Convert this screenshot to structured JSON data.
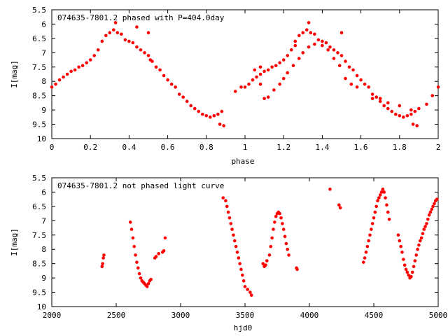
{
  "chart_data": [
    {
      "type": "scatter",
      "title": "074635-7801.2 phased with P=404.0day",
      "xlabel": "phase",
      "ylabel": "I[mag]",
      "xlim": [
        0,
        2
      ],
      "ylim": [
        10,
        5.5
      ],
      "y_inverted": true,
      "xticks": [
        0,
        0.2,
        0.4,
        0.6,
        0.8,
        1,
        1.2,
        1.4,
        1.6,
        1.8,
        2
      ],
      "xtick_labels": [
        "0",
        "0.2",
        "0.4",
        "0.6",
        "0.8",
        "1",
        "1.2",
        "1.4",
        "1.6",
        "1.8",
        "2"
      ],
      "yticks": [
        5.5,
        6,
        6.5,
        7,
        7.5,
        8,
        8.5,
        9,
        9.5,
        10
      ],
      "ytick_labels": [
        "5.5",
        "6",
        "6.5",
        "7",
        "7.5",
        "8",
        "8.5",
        "9",
        "9.5",
        "10"
      ],
      "grid": false,
      "marker_color": "#ff0000",
      "series": [
        {
          "points": [
            [
              0.0,
              8.2
            ],
            [
              0.02,
              8.1
            ],
            [
              0.04,
              7.95
            ],
            [
              0.06,
              7.85
            ],
            [
              0.08,
              7.75
            ],
            [
              0.1,
              7.65
            ],
            [
              0.12,
              7.6
            ],
            [
              0.14,
              7.5
            ],
            [
              0.16,
              7.45
            ],
            [
              0.18,
              7.35
            ],
            [
              0.2,
              7.25
            ],
            [
              0.22,
              7.1
            ],
            [
              0.24,
              6.9
            ],
            [
              0.26,
              6.6
            ],
            [
              0.28,
              6.4
            ],
            [
              0.3,
              6.3
            ],
            [
              0.32,
              6.2
            ],
            [
              0.33,
              5.95
            ],
            [
              0.34,
              6.3
            ],
            [
              0.36,
              6.35
            ],
            [
              0.38,
              6.55
            ],
            [
              0.4,
              6.6
            ],
            [
              0.42,
              6.65
            ],
            [
              0.44,
              6.8
            ],
            [
              0.46,
              6.9
            ],
            [
              0.48,
              7.0
            ],
            [
              0.5,
              7.1
            ],
            [
              0.5,
              6.3
            ],
            [
              0.52,
              7.3
            ],
            [
              0.54,
              7.5
            ],
            [
              0.56,
              7.6
            ],
            [
              0.58,
              7.8
            ],
            [
              0.6,
              7.95
            ],
            [
              0.62,
              8.1
            ],
            [
              0.64,
              8.2
            ],
            [
              0.66,
              8.45
            ],
            [
              0.68,
              8.55
            ],
            [
              0.7,
              8.7
            ],
            [
              0.72,
              8.85
            ],
            [
              0.74,
              8.95
            ],
            [
              0.76,
              9.05
            ],
            [
              0.78,
              9.15
            ],
            [
              0.8,
              9.2
            ],
            [
              0.82,
              9.25
            ],
            [
              0.84,
              9.2
            ],
            [
              0.86,
              9.15
            ],
            [
              0.87,
              9.5
            ],
            [
              0.88,
              9.05
            ],
            [
              0.89,
              9.55
            ],
            [
              1.0,
              8.2
            ],
            [
              1.02,
              8.1
            ],
            [
              1.04,
              7.95
            ],
            [
              1.06,
              7.85
            ],
            [
              1.08,
              7.75
            ],
            [
              1.1,
              7.65
            ],
            [
              1.12,
              7.6
            ],
            [
              1.14,
              7.5
            ],
            [
              1.16,
              7.45
            ],
            [
              1.18,
              7.35
            ],
            [
              1.2,
              7.25
            ],
            [
              1.22,
              7.1
            ],
            [
              1.24,
              6.9
            ],
            [
              1.26,
              6.6
            ],
            [
              1.28,
              6.4
            ],
            [
              1.3,
              6.3
            ],
            [
              1.32,
              6.2
            ],
            [
              1.33,
              5.95
            ],
            [
              1.34,
              6.3
            ],
            [
              1.36,
              6.35
            ],
            [
              1.38,
              6.55
            ],
            [
              1.4,
              6.6
            ],
            [
              1.42,
              6.65
            ],
            [
              1.44,
              6.8
            ],
            [
              1.46,
              6.9
            ],
            [
              1.48,
              7.0
            ],
            [
              1.5,
              7.1
            ],
            [
              1.5,
              6.3
            ],
            [
              1.52,
              7.3
            ],
            [
              1.54,
              7.5
            ],
            [
              1.56,
              7.6
            ],
            [
              1.58,
              7.8
            ],
            [
              1.6,
              7.95
            ],
            [
              1.62,
              8.1
            ],
            [
              1.64,
              8.2
            ],
            [
              1.66,
              8.45
            ],
            [
              1.68,
              8.55
            ],
            [
              1.7,
              8.7
            ],
            [
              1.72,
              8.85
            ],
            [
              1.74,
              8.95
            ],
            [
              1.76,
              9.05
            ],
            [
              1.78,
              9.15
            ],
            [
              1.8,
              9.2
            ],
            [
              1.82,
              9.25
            ],
            [
              1.84,
              9.2
            ],
            [
              1.86,
              9.15
            ],
            [
              1.87,
              9.5
            ],
            [
              1.88,
              9.05
            ],
            [
              1.89,
              9.55
            ],
            [
              0.95,
              8.35
            ],
            [
              0.98,
              8.2
            ],
            [
              1.05,
              7.6
            ],
            [
              1.08,
              7.5
            ],
            [
              1.1,
              8.6
            ],
            [
              1.12,
              8.55
            ],
            [
              1.15,
              8.3
            ],
            [
              1.18,
              8.1
            ],
            [
              1.2,
              7.9
            ],
            [
              1.22,
              7.7
            ],
            [
              1.25,
              7.45
            ],
            [
              1.28,
              7.2
            ],
            [
              1.3,
              7.0
            ],
            [
              1.33,
              6.8
            ],
            [
              1.36,
              6.7
            ],
            [
              1.4,
              6.75
            ],
            [
              1.43,
              6.9
            ],
            [
              1.46,
              7.2
            ],
            [
              1.49,
              7.45
            ],
            [
              1.52,
              7.9
            ],
            [
              1.55,
              8.1
            ],
            [
              1.58,
              8.2
            ],
            [
              1.66,
              8.6
            ],
            [
              1.7,
              8.6
            ],
            [
              1.74,
              8.75
            ],
            [
              1.8,
              8.85
            ],
            [
              1.86,
              9.0
            ],
            [
              1.9,
              8.95
            ],
            [
              1.94,
              8.8
            ],
            [
              1.97,
              8.5
            ],
            [
              2.0,
              8.2
            ],
            [
              0.44,
              6.1
            ],
            [
              0.51,
              7.25
            ],
            [
              1.08,
              8.1
            ],
            [
              1.26,
              6.75
            ]
          ]
        }
      ]
    },
    {
      "type": "scatter",
      "title": "074635-7801.2 not phased light curve",
      "xlabel": "hjd0",
      "ylabel": "I[mag]",
      "xlim": [
        2000,
        5000
      ],
      "ylim": [
        10,
        5.5
      ],
      "y_inverted": true,
      "xticks": [
        2000,
        2500,
        3000,
        3500,
        4000,
        4500,
        5000
      ],
      "xtick_labels": [
        "2000",
        "2500",
        "3000",
        "3500",
        "4000",
        "4500",
        "5000"
      ],
      "yticks": [
        5.5,
        6,
        6.5,
        7,
        7.5,
        8,
        8.5,
        9,
        9.5,
        10
      ],
      "ytick_labels": [
        "5.5",
        "6",
        "6.5",
        "7",
        "7.5",
        "8",
        "8.5",
        "9",
        "9.5",
        "10"
      ],
      "grid": false,
      "marker_color": "#ff0000",
      "series": [
        {
          "points": [
            [
              2390,
              8.6
            ],
            [
              2395,
              8.5
            ],
            [
              2400,
              8.3
            ],
            [
              2405,
              8.2
            ],
            [
              2610,
              7.05
            ],
            [
              2620,
              7.3
            ],
            [
              2630,
              7.6
            ],
            [
              2640,
              7.9
            ],
            [
              2650,
              8.2
            ],
            [
              2660,
              8.45
            ],
            [
              2670,
              8.65
            ],
            [
              2680,
              8.85
            ],
            [
              2690,
              9.0
            ],
            [
              2700,
              9.1
            ],
            [
              2710,
              9.15
            ],
            [
              2720,
              9.2
            ],
            [
              2730,
              9.25
            ],
            [
              2740,
              9.3
            ],
            [
              2750,
              9.2
            ],
            [
              2760,
              9.1
            ],
            [
              2770,
              9.05
            ],
            [
              2800,
              8.3
            ],
            [
              2810,
              8.25
            ],
            [
              2830,
              8.15
            ],
            [
              2860,
              8.1
            ],
            [
              2870,
              8.05
            ],
            [
              2880,
              7.6
            ],
            [
              3330,
              6.2
            ],
            [
              3350,
              6.3
            ],
            [
              3360,
              6.5
            ],
            [
              3370,
              6.7
            ],
            [
              3380,
              6.9
            ],
            [
              3390,
              7.1
            ],
            [
              3400,
              7.3
            ],
            [
              3410,
              7.5
            ],
            [
              3420,
              7.7
            ],
            [
              3430,
              7.9
            ],
            [
              3440,
              8.1
            ],
            [
              3450,
              8.3
            ],
            [
              3460,
              8.5
            ],
            [
              3470,
              8.7
            ],
            [
              3480,
              8.9
            ],
            [
              3490,
              9.1
            ],
            [
              3500,
              9.3
            ],
            [
              3520,
              9.4
            ],
            [
              3540,
              9.5
            ],
            [
              3550,
              9.6
            ],
            [
              3640,
              8.5
            ],
            [
              3650,
              8.6
            ],
            [
              3660,
              8.55
            ],
            [
              3670,
              8.4
            ],
            [
              3690,
              8.2
            ],
            [
              3700,
              7.9
            ],
            [
              3710,
              7.6
            ],
            [
              3720,
              7.3
            ],
            [
              3730,
              7.05
            ],
            [
              3740,
              6.85
            ],
            [
              3750,
              6.75
            ],
            [
              3760,
              6.7
            ],
            [
              3770,
              6.75
            ],
            [
              3780,
              6.9
            ],
            [
              3790,
              7.1
            ],
            [
              3800,
              7.3
            ],
            [
              3810,
              7.55
            ],
            [
              3820,
              7.8
            ],
            [
              3830,
              8.0
            ],
            [
              3840,
              8.2
            ],
            [
              3900,
              8.65
            ],
            [
              3905,
              8.7
            ],
            [
              4160,
              5.9
            ],
            [
              4230,
              6.45
            ],
            [
              4240,
              6.55
            ],
            [
              4420,
              8.45
            ],
            [
              4430,
              8.3
            ],
            [
              4440,
              8.1
            ],
            [
              4450,
              7.9
            ],
            [
              4460,
              7.7
            ],
            [
              4470,
              7.5
            ],
            [
              4480,
              7.3
            ],
            [
              4490,
              7.1
            ],
            [
              4500,
              6.9
            ],
            [
              4510,
              6.7
            ],
            [
              4520,
              6.5
            ],
            [
              4530,
              6.3
            ],
            [
              4540,
              6.2
            ],
            [
              4550,
              6.1
            ],
            [
              4560,
              6.0
            ],
            [
              4570,
              5.9
            ],
            [
              4580,
              6.0
            ],
            [
              4590,
              6.2
            ],
            [
              4600,
              6.45
            ],
            [
              4610,
              6.7
            ],
            [
              4620,
              6.95
            ],
            [
              4690,
              7.5
            ],
            [
              4700,
              7.7
            ],
            [
              4710,
              7.9
            ],
            [
              4720,
              8.1
            ],
            [
              4730,
              8.35
            ],
            [
              4740,
              8.55
            ],
            [
              4750,
              8.7
            ],
            [
              4760,
              8.8
            ],
            [
              4770,
              8.9
            ],
            [
              4780,
              9.0
            ],
            [
              4790,
              8.95
            ],
            [
              4800,
              8.8
            ],
            [
              4810,
              8.6
            ],
            [
              4820,
              8.4
            ],
            [
              4830,
              8.2
            ],
            [
              4840,
              8.0
            ],
            [
              4850,
              7.85
            ],
            [
              4860,
              7.7
            ],
            [
              4870,
              7.6
            ],
            [
              4880,
              7.45
            ],
            [
              4890,
              7.3
            ],
            [
              4900,
              7.2
            ],
            [
              4910,
              7.1
            ],
            [
              4920,
              6.95
            ],
            [
              4930,
              6.8
            ],
            [
              4940,
              6.7
            ],
            [
              4950,
              6.6
            ],
            [
              4960,
              6.5
            ],
            [
              4970,
              6.4
            ],
            [
              4980,
              6.3
            ],
            [
              4990,
              6.25
            ]
          ]
        }
      ]
    }
  ]
}
